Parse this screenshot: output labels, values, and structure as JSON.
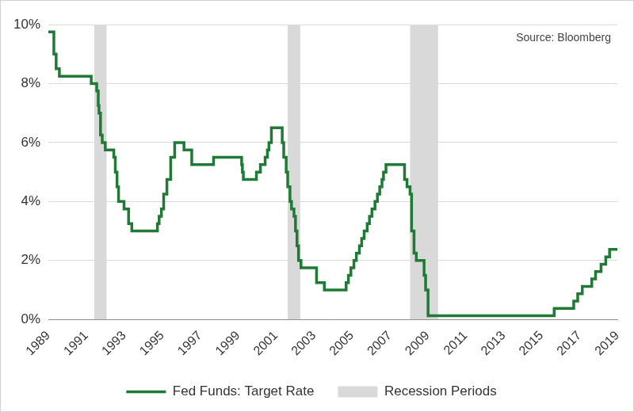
{
  "chart_data": {
    "type": "line",
    "line_style": "stepped",
    "x": [
      1989.0,
      1989.29,
      1989.41,
      1989.58,
      1991.26,
      1991.55,
      1991.63,
      1991.67,
      1991.75,
      1991.84,
      1992.0,
      1992.45,
      1992.53,
      1992.62,
      1992.7,
      1992.99,
      1993.23,
      1993.4,
      1994.75,
      1994.84,
      1994.96,
      1995.08,
      1995.25,
      1995.45,
      1995.66,
      1996.15,
      1996.56,
      1997.71,
      1999.19,
      1999.23,
      1999.28,
      1999.97,
      2000.18,
      2000.43,
      2000.55,
      2000.63,
      2000.76,
      2001.33,
      2001.41,
      2001.54,
      2001.62,
      2001.74,
      2001.82,
      2001.95,
      2002.03,
      2002.11,
      2002.19,
      2002.32,
      2003.14,
      2003.55,
      2004.7,
      2004.82,
      2004.95,
      2005.11,
      2005.24,
      2005.4,
      2005.52,
      2005.65,
      2005.81,
      2005.93,
      2006.06,
      2006.22,
      2006.35,
      2006.47,
      2006.59,
      2006.67,
      2006.8,
      2007.78,
      2007.91,
      2008.07,
      2008.15,
      2008.28,
      2008.4,
      2008.81,
      2008.89,
      2009.02,
      2015.67,
      2016.7,
      2016.91,
      2017.15,
      2017.65,
      2017.85,
      2018.14,
      2018.39,
      2018.59,
      2019.0
    ],
    "series": [
      {
        "name": "Fed Funds: Target Rate",
        "color": "#1f7a35",
        "values": [
          9.75,
          9.0,
          8.5,
          8.25,
          8.0,
          7.75,
          7.25,
          7.0,
          6.25,
          6.0,
          5.75,
          5.5,
          5.0,
          4.5,
          4.0,
          3.75,
          3.25,
          3.0,
          3.25,
          3.5,
          3.75,
          4.25,
          4.75,
          5.5,
          6.0,
          5.75,
          5.25,
          5.5,
          5.25,
          5.0,
          4.75,
          5.0,
          5.25,
          5.5,
          5.75,
          6.0,
          6.5,
          6.0,
          5.5,
          5.0,
          4.5,
          4.0,
          3.75,
          3.5,
          3.0,
          2.5,
          2.0,
          1.75,
          1.25,
          1.0,
          1.25,
          1.5,
          1.75,
          2.0,
          2.25,
          2.5,
          2.75,
          3.0,
          3.25,
          3.5,
          3.75,
          4.0,
          4.25,
          4.5,
          4.75,
          5.0,
          5.25,
          4.75,
          4.5,
          4.25,
          3.0,
          2.25,
          2.0,
          1.5,
          1.0,
          0.125,
          0.375,
          0.625,
          0.875,
          1.125,
          1.375,
          1.625,
          1.875,
          2.125,
          2.375,
          2.375
        ]
      }
    ],
    "recessions": {
      "name": "Recession Periods",
      "color": "#d9d9d9",
      "spans": [
        [
          1991.42,
          1992.07
        ],
        [
          2001.62,
          2002.28
        ],
        [
          2008.07,
          2009.55
        ]
      ]
    },
    "annotation": "Source: Bloomberg",
    "xlim": [
      1989,
      2019
    ],
    "xticks": [
      1989,
      1991,
      1993,
      1995,
      1997,
      1999,
      2001,
      2003,
      2005,
      2007,
      2009,
      2011,
      2013,
      2015,
      2017,
      2019
    ],
    "ylim": [
      0,
      10
    ],
    "yticks": [
      {
        "value": 0,
        "label": "0%"
      },
      {
        "value": 2,
        "label": "2%"
      },
      {
        "value": 4,
        "label": "4%"
      },
      {
        "value": 6,
        "label": "6%"
      },
      {
        "value": 8,
        "label": "8%"
      },
      {
        "value": 10,
        "label": "10%"
      }
    ],
    "grid": true,
    "legend": "bottom"
  }
}
